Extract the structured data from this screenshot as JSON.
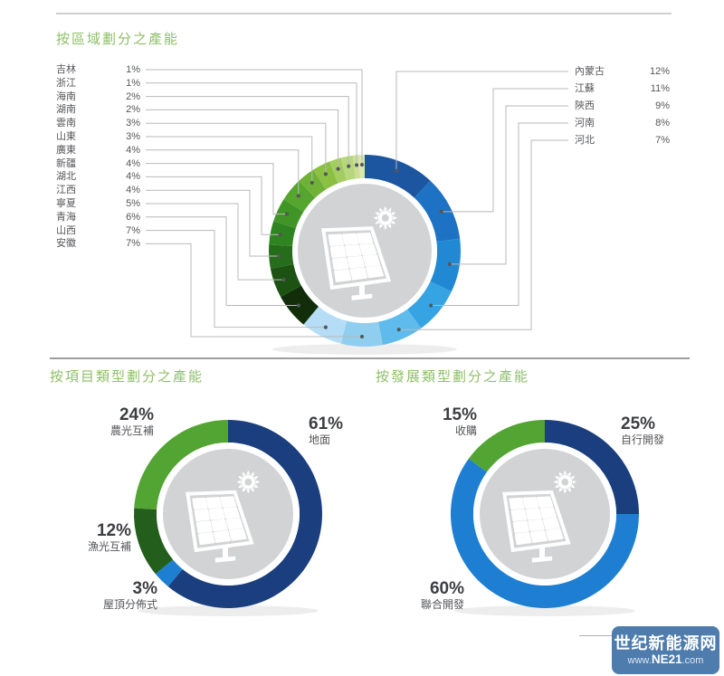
{
  "titles": {
    "region": "按區域劃分之產能",
    "project_type": "按項目類型劃分之產能",
    "development_type": "按發展類型劃分之產能"
  },
  "colors": {
    "title_green": "#8ebf68",
    "label_gray": "#55565a",
    "line_gray": "#b9b9b9",
    "center_gray": "#d2d3d4",
    "logo_blue": "#4d7cad"
  },
  "chart_data": [
    {
      "id": "capacity-by-region",
      "type": "donut",
      "title": "按區域劃分之產能",
      "unit": "%",
      "clockwise_from_top": true,
      "center_icon": "solar-panel-sun-icon",
      "segments": [
        {
          "label": "內蒙古",
          "value": 12,
          "color": "#1c56a1"
        },
        {
          "label": "江蘇",
          "value": 11,
          "color": "#1d72c3"
        },
        {
          "label": "陝西",
          "value": 9,
          "color": "#2189d3"
        },
        {
          "label": "河南",
          "value": 8,
          "color": "#36a3e2"
        },
        {
          "label": "河北",
          "value": 7,
          "color": "#5fbbeb"
        },
        {
          "label": "安徽",
          "value": 7,
          "color": "#90cef0"
        },
        {
          "label": "山西",
          "value": 7,
          "color": "#b5ddf5"
        },
        {
          "label": "青海",
          "value": 6,
          "color": "#122d0a"
        },
        {
          "label": "寧夏",
          "value": 5,
          "color": "#1c5212"
        },
        {
          "label": "江西",
          "value": 4,
          "color": "#256d1a"
        },
        {
          "label": "湖北",
          "value": 4,
          "color": "#2f8421"
        },
        {
          "label": "新疆",
          "value": 4,
          "color": "#419527"
        },
        {
          "label": "廣東",
          "value": 4,
          "color": "#56a52e"
        },
        {
          "label": "山東",
          "value": 3,
          "color": "#70b237"
        },
        {
          "label": "雲南",
          "value": 3,
          "color": "#8bc043"
        },
        {
          "label": "湖南",
          "value": 2,
          "color": "#a3cd60"
        },
        {
          "label": "海南",
          "value": 2,
          "color": "#b7d77d"
        },
        {
          "label": "浙江",
          "value": 1,
          "color": "#cadf95"
        },
        {
          "label": "吉林",
          "value": 1,
          "color": "#d9e7ae"
        }
      ],
      "legend_left_order": [
        "吉林",
        "浙江",
        "海南",
        "湖南",
        "雲南",
        "山東",
        "廣東",
        "新疆",
        "湖北",
        "江西",
        "寧夏",
        "青海",
        "山西",
        "安徽"
      ],
      "legend_right_order": [
        "內蒙古",
        "江蘇",
        "陝西",
        "河南",
        "河北"
      ]
    },
    {
      "id": "capacity-by-project-type",
      "type": "donut",
      "title": "按項目類型劃分之產能",
      "unit": "%",
      "clockwise_from_top": true,
      "center_icon": "solar-panel-sun-icon",
      "segments": [
        {
          "label": "地面",
          "value": 61,
          "color": "#1b3e7e"
        },
        {
          "label": "屋頂分佈式",
          "value": 3,
          "color": "#1e7fd2"
        },
        {
          "label": "漁光互補",
          "value": 12,
          "color": "#235e1d"
        },
        {
          "label": "農光互補",
          "value": 24,
          "color": "#52a433"
        }
      ]
    },
    {
      "id": "capacity-by-development-type",
      "type": "donut",
      "title": "按發展類型劃分之產能",
      "unit": "%",
      "clockwise_from_top": true,
      "center_icon": "solar-panel-sun-icon",
      "segments": [
        {
          "label": "自行開發",
          "value": 25,
          "color": "#1b3e7e"
        },
        {
          "label": "聯合開發",
          "value": 60,
          "color": "#1e7fd2"
        },
        {
          "label": "收購",
          "value": 15,
          "color": "#52a433"
        }
      ]
    }
  ],
  "watermark": {
    "line1": "世纪新能源网",
    "www": "www.",
    "ne": "NE21",
    "com": ".com"
  }
}
